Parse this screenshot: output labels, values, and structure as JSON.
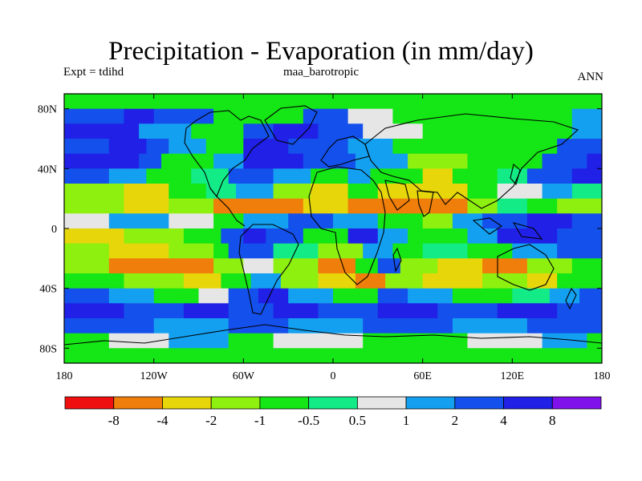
{
  "chart_data": {
    "type": "heatmap",
    "title": "Precipitation - Evaporation (in mm/day)",
    "subtitle_left": "Expt = tdihd",
    "subtitle_center": "maa_barotropic",
    "subtitle_right": "ANN",
    "x_axis": {
      "range": [
        -180,
        180
      ],
      "ticks": [
        {
          "value": -180,
          "label": "180"
        },
        {
          "value": -120,
          "label": "120W"
        },
        {
          "value": -60,
          "label": "60W"
        },
        {
          "value": 0,
          "label": "0"
        },
        {
          "value": 60,
          "label": "60E"
        },
        {
          "value": 120,
          "label": "120E"
        },
        {
          "value": 180,
          "label": "180"
        }
      ]
    },
    "y_axis": {
      "range": [
        -90,
        90
      ],
      "ticks": [
        {
          "value": 80,
          "label": "80N"
        },
        {
          "value": 40,
          "label": "40N"
        },
        {
          "value": 0,
          "label": "0"
        },
        {
          "value": -40,
          "label": "40S"
        },
        {
          "value": -80,
          "label": "80S"
        }
      ]
    },
    "colorbar": {
      "colors": [
        "#f00f0f",
        "#f07e0a",
        "#e6d60a",
        "#8ef00f",
        "#15e615",
        "#12eb86",
        "#e6e6e6",
        "#14a0f0",
        "#1450eb",
        "#2020e6",
        "#8011eb"
      ],
      "labels": [
        "-8",
        "-4",
        "-2",
        "-1",
        "-0.5",
        "0.5",
        "1",
        "2",
        "4",
        "8"
      ]
    },
    "bands": [
      {
        "lat": 90,
        "row": [
          {
            "lon": -180,
            "level": 4
          },
          {
            "lon": 0,
            "level": 4
          }
        ]
      },
      {
        "lat": 80,
        "row": [
          {
            "lon": -180,
            "level": 8
          },
          {
            "lon": -140,
            "level": 9
          },
          {
            "lon": -120,
            "level": 8
          },
          {
            "lon": -80,
            "level": 4
          },
          {
            "lon": -20,
            "level": 8
          },
          {
            "lon": 10,
            "level": 6
          },
          {
            "lon": 40,
            "level": 4
          },
          {
            "lon": 100,
            "level": 4
          },
          {
            "lon": 160,
            "level": 7
          }
        ]
      },
      {
        "lat": 70,
        "row": [
          {
            "lon": -180,
            "level": 9
          },
          {
            "lon": -130,
            "level": 7
          },
          {
            "lon": -95,
            "level": 4
          },
          {
            "lon": -60,
            "level": 8
          },
          {
            "lon": -40,
            "level": 9
          },
          {
            "lon": -10,
            "level": 8
          },
          {
            "lon": 20,
            "level": 6
          },
          {
            "lon": 60,
            "level": 4
          },
          {
            "lon": 130,
            "level": 4
          },
          {
            "lon": 160,
            "level": 7
          }
        ]
      },
      {
        "lat": 60,
        "row": [
          {
            "lon": -180,
            "level": 8
          },
          {
            "lon": -150,
            "level": 9
          },
          {
            "lon": -125,
            "level": 8
          },
          {
            "lon": -110,
            "level": 7
          },
          {
            "lon": -85,
            "level": 4
          },
          {
            "lon": -60,
            "level": 9
          },
          {
            "lon": -30,
            "level": 8
          },
          {
            "lon": 10,
            "level": 7
          },
          {
            "lon": 40,
            "level": 4
          },
          {
            "lon": 120,
            "level": 4
          },
          {
            "lon": 150,
            "level": 8
          }
        ]
      },
      {
        "lat": 50,
        "row": [
          {
            "lon": -180,
            "level": 9
          },
          {
            "lon": -130,
            "level": 8
          },
          {
            "lon": -115,
            "level": 4
          },
          {
            "lon": -80,
            "level": 7
          },
          {
            "lon": -60,
            "level": 9
          },
          {
            "lon": -20,
            "level": 8
          },
          {
            "lon": 15,
            "level": 7
          },
          {
            "lon": 50,
            "level": 3
          },
          {
            "lon": 90,
            "level": 4
          },
          {
            "lon": 140,
            "level": 8
          },
          {
            "lon": 170,
            "level": 9
          }
        ]
      },
      {
        "lat": 40,
        "row": [
          {
            "lon": -180,
            "level": 8
          },
          {
            "lon": -150,
            "level": 7
          },
          {
            "lon": -125,
            "level": 4
          },
          {
            "lon": -95,
            "level": 5
          },
          {
            "lon": -70,
            "level": 8
          },
          {
            "lon": -40,
            "level": 7
          },
          {
            "lon": -15,
            "level": 4
          },
          {
            "lon": 10,
            "level": 7
          },
          {
            "lon": 25,
            "level": 4
          },
          {
            "lon": 60,
            "level": 2
          },
          {
            "lon": 80,
            "level": 4
          },
          {
            "lon": 110,
            "level": 5
          },
          {
            "lon": 130,
            "level": 8
          },
          {
            "lon": 160,
            "level": 9
          }
        ]
      },
      {
        "lat": 30,
        "row": [
          {
            "lon": -180,
            "level": 3
          },
          {
            "lon": -140,
            "level": 2
          },
          {
            "lon": -110,
            "level": 4
          },
          {
            "lon": -85,
            "level": 5
          },
          {
            "lon": -65,
            "level": 7
          },
          {
            "lon": -40,
            "level": 3
          },
          {
            "lon": -15,
            "level": 2
          },
          {
            "lon": 10,
            "level": 4
          },
          {
            "lon": 30,
            "level": 2
          },
          {
            "lon": 90,
            "level": 4
          },
          {
            "lon": 110,
            "level": 6
          },
          {
            "lon": 140,
            "level": 7
          },
          {
            "lon": 160,
            "level": 5
          }
        ]
      },
      {
        "lat": 20,
        "row": [
          {
            "lon": -180,
            "level": 3
          },
          {
            "lon": -140,
            "level": 2
          },
          {
            "lon": -110,
            "level": 3
          },
          {
            "lon": -80,
            "level": 1
          },
          {
            "lon": -55,
            "level": 1
          },
          {
            "lon": -20,
            "level": 2
          },
          {
            "lon": 10,
            "level": 1
          },
          {
            "lon": 60,
            "level": 1
          },
          {
            "lon": 90,
            "level": 3
          },
          {
            "lon": 110,
            "level": 5
          },
          {
            "lon": 130,
            "level": 4
          },
          {
            "lon": 150,
            "level": 3
          }
        ]
      },
      {
        "lat": 10,
        "row": [
          {
            "lon": -180,
            "level": 6
          },
          {
            "lon": -150,
            "level": 7
          },
          {
            "lon": -110,
            "level": 6
          },
          {
            "lon": -80,
            "level": 4
          },
          {
            "lon": -60,
            "level": 7
          },
          {
            "lon": -30,
            "level": 8
          },
          {
            "lon": 0,
            "level": 7
          },
          {
            "lon": 30,
            "level": 4
          },
          {
            "lon": 60,
            "level": 3
          },
          {
            "lon": 80,
            "level": 7
          },
          {
            "lon": 100,
            "level": 8
          },
          {
            "lon": 130,
            "level": 9
          },
          {
            "lon": 160,
            "level": 8
          }
        ]
      },
      {
        "lat": 0,
        "row": [
          {
            "lon": -180,
            "level": 2
          },
          {
            "lon": -140,
            "level": 3
          },
          {
            "lon": -100,
            "level": 4
          },
          {
            "lon": -75,
            "level": 8
          },
          {
            "lon": -60,
            "level": 9
          },
          {
            "lon": -45,
            "level": 8
          },
          {
            "lon": -20,
            "level": 4
          },
          {
            "lon": 10,
            "level": 9
          },
          {
            "lon": 30,
            "level": 7
          },
          {
            "lon": 50,
            "level": 4
          },
          {
            "lon": 90,
            "level": 7
          },
          {
            "lon": 110,
            "level": 9
          },
          {
            "lon": 150,
            "level": 8
          }
        ]
      },
      {
        "lat": -10,
        "row": [
          {
            "lon": -180,
            "level": 3
          },
          {
            "lon": -150,
            "level": 2
          },
          {
            "lon": -110,
            "level": 3
          },
          {
            "lon": -80,
            "level": 4
          },
          {
            "lon": -70,
            "level": 8
          },
          {
            "lon": -40,
            "level": 5
          },
          {
            "lon": -10,
            "level": 3
          },
          {
            "lon": 20,
            "level": 7
          },
          {
            "lon": 40,
            "level": 4
          },
          {
            "lon": 60,
            "level": 5
          },
          {
            "lon": 90,
            "level": 4
          },
          {
            "lon": 120,
            "level": 7
          },
          {
            "lon": 150,
            "level": 8
          }
        ]
      },
      {
        "lat": -20,
        "row": [
          {
            "lon": -180,
            "level": 3
          },
          {
            "lon": -150,
            "level": 1
          },
          {
            "lon": -80,
            "level": 3
          },
          {
            "lon": -60,
            "level": 6
          },
          {
            "lon": -40,
            "level": 3
          },
          {
            "lon": -10,
            "level": 1
          },
          {
            "lon": 15,
            "level": 4
          },
          {
            "lon": 30,
            "level": 8
          },
          {
            "lon": 45,
            "level": 3
          },
          {
            "lon": 70,
            "level": 2
          },
          {
            "lon": 100,
            "level": 1
          },
          {
            "lon": 130,
            "level": 3
          },
          {
            "lon": 160,
            "level": 4
          }
        ]
      },
      {
        "lat": -30,
        "row": [
          {
            "lon": -180,
            "level": 4
          },
          {
            "lon": -140,
            "level": 3
          },
          {
            "lon": -100,
            "level": 2
          },
          {
            "lon": -75,
            "level": 4
          },
          {
            "lon": -55,
            "level": 7
          },
          {
            "lon": -35,
            "level": 3
          },
          {
            "lon": -10,
            "level": 2
          },
          {
            "lon": 15,
            "level": 1
          },
          {
            "lon": 35,
            "level": 3
          },
          {
            "lon": 60,
            "level": 2
          },
          {
            "lon": 100,
            "level": 3
          },
          {
            "lon": 130,
            "level": 2
          },
          {
            "lon": 150,
            "level": 4
          }
        ]
      },
      {
        "lat": -40,
        "row": [
          {
            "lon": -180,
            "level": 8
          },
          {
            "lon": -150,
            "level": 7
          },
          {
            "lon": -120,
            "level": 4
          },
          {
            "lon": -90,
            "level": 6
          },
          {
            "lon": -70,
            "level": 8
          },
          {
            "lon": -50,
            "level": 9
          },
          {
            "lon": -30,
            "level": 7
          },
          {
            "lon": 0,
            "level": 4
          },
          {
            "lon": 30,
            "level": 8
          },
          {
            "lon": 50,
            "level": 7
          },
          {
            "lon": 80,
            "level": 4
          },
          {
            "lon": 120,
            "level": 5
          },
          {
            "lon": 145,
            "level": 7
          },
          {
            "lon": 165,
            "level": 8
          }
        ]
      },
      {
        "lat": -50,
        "row": [
          {
            "lon": -180,
            "level": 9
          },
          {
            "lon": -140,
            "level": 8
          },
          {
            "lon": -100,
            "level": 9
          },
          {
            "lon": -70,
            "level": 8
          },
          {
            "lon": -40,
            "level": 9
          },
          {
            "lon": -10,
            "level": 8
          },
          {
            "lon": 30,
            "level": 9
          },
          {
            "lon": 70,
            "level": 8
          },
          {
            "lon": 110,
            "level": 9
          },
          {
            "lon": 150,
            "level": 8
          }
        ]
      },
      {
        "lat": -60,
        "row": [
          {
            "lon": -180,
            "level": 8
          },
          {
            "lon": -120,
            "level": 7
          },
          {
            "lon": -70,
            "level": 8
          },
          {
            "lon": -30,
            "level": 7
          },
          {
            "lon": 20,
            "level": 8
          },
          {
            "lon": 80,
            "level": 7
          },
          {
            "lon": 130,
            "level": 8
          }
        ]
      },
      {
        "lat": -70,
        "row": [
          {
            "lon": -180,
            "level": 4
          },
          {
            "lon": -150,
            "level": 6
          },
          {
            "lon": -110,
            "level": 7
          },
          {
            "lon": -70,
            "level": 4
          },
          {
            "lon": -40,
            "level": 6
          },
          {
            "lon": 20,
            "level": 4
          },
          {
            "lon": 90,
            "level": 6
          },
          {
            "lon": 140,
            "level": 7
          },
          {
            "lon": 170,
            "level": 4
          }
        ]
      },
      {
        "lat": -80,
        "row": [
          {
            "lon": -180,
            "level": 4
          }
        ]
      }
    ]
  }
}
